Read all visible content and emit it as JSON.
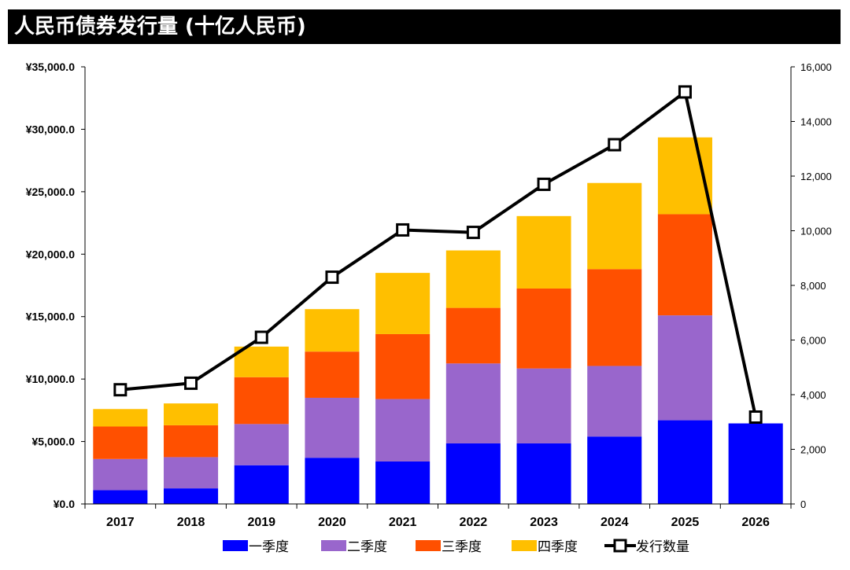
{
  "title": "人民币债券发行量 (十亿人民币)",
  "chart_data": {
    "type": "bar",
    "stacked": true,
    "categories": [
      "2017",
      "2018",
      "2019",
      "2020",
      "2021",
      "2022",
      "2023",
      "2024",
      "2025",
      "2026"
    ],
    "series": [
      {
        "name": "一季度",
        "color": "#0000ff",
        "values": [
          1100,
          1250,
          3100,
          3700,
          3400,
          4850,
          4850,
          5400,
          6700,
          6450
        ]
      },
      {
        "name": "二季度",
        "color": "#9966cc",
        "values": [
          2500,
          2500,
          3300,
          4800,
          5000,
          6400,
          6000,
          5650,
          8400,
          0
        ]
      },
      {
        "name": "三季度",
        "color": "#ff5000",
        "values": [
          2600,
          2550,
          3750,
          3700,
          5200,
          4450,
          6400,
          7750,
          8100,
          0
        ]
      },
      {
        "name": "四季度",
        "color": "#ffbf00",
        "values": [
          1400,
          1750,
          2450,
          3400,
          4900,
          4600,
          5800,
          6900,
          6150,
          0
        ]
      }
    ],
    "line_series": {
      "name": "发行数量",
      "color": "#000000",
      "axis": "right",
      "values": [
        4180,
        4420,
        6100,
        8300,
        10030,
        9940,
        11700,
        13150,
        15080,
        3180
      ]
    },
    "ylim_left": [
      0,
      35000
    ],
    "yticks_left": [
      "¥0.0",
      "¥5,000.0",
      "¥10,000.0",
      "¥15,000.0",
      "¥20,000.0",
      "¥25,000.0",
      "¥30,000.0",
      "¥35,000.0"
    ],
    "ylim_right": [
      0,
      16000
    ],
    "yticks_right": [
      "0",
      "2,000",
      "4,000",
      "6,000",
      "8,000",
      "10,000",
      "12,000",
      "14,000",
      "16,000"
    ],
    "legend_position": "bottom",
    "grid": false
  }
}
